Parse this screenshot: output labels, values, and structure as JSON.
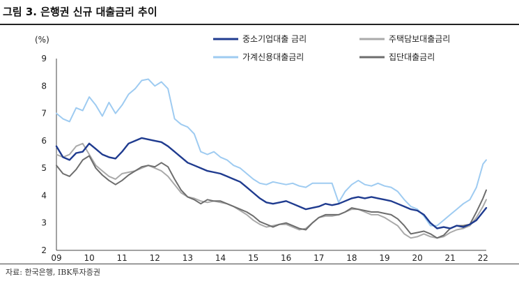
{
  "figure": {
    "title": "그림 3. 은행권 신규 대출금리 추이",
    "source": "자료: 한국은행, IBK투자증권"
  },
  "chart_data": {
    "type": "line",
    "ylabel": "(%)",
    "ylim": [
      2,
      9
    ],
    "xlim": [
      2009.0,
      2022.1
    ],
    "y_ticks": [
      2,
      3,
      4,
      5,
      6,
      7,
      8,
      9
    ],
    "x_tick_labels": [
      "09",
      "10",
      "11",
      "12",
      "13",
      "14",
      "15",
      "16",
      "17",
      "18",
      "19",
      "20",
      "21",
      "22"
    ],
    "grid": false,
    "legend_position": "top",
    "series": [
      {
        "name": "중소기업대출 금리",
        "color": "#1f3b8f",
        "data": [
          [
            2009.0,
            5.8
          ],
          [
            2009.2,
            5.4
          ],
          [
            2009.4,
            5.3
          ],
          [
            2009.6,
            5.55
          ],
          [
            2009.8,
            5.6
          ],
          [
            2010.0,
            5.9
          ],
          [
            2010.2,
            5.7
          ],
          [
            2010.4,
            5.5
          ],
          [
            2010.6,
            5.4
          ],
          [
            2010.8,
            5.35
          ],
          [
            2011.0,
            5.6
          ],
          [
            2011.2,
            5.9
          ],
          [
            2011.4,
            6.0
          ],
          [
            2011.6,
            6.1
          ],
          [
            2011.8,
            6.05
          ],
          [
            2012.0,
            6.0
          ],
          [
            2012.2,
            5.95
          ],
          [
            2012.4,
            5.8
          ],
          [
            2012.6,
            5.6
          ],
          [
            2012.8,
            5.4
          ],
          [
            2013.0,
            5.2
          ],
          [
            2013.2,
            5.1
          ],
          [
            2013.4,
            5.0
          ],
          [
            2013.6,
            4.9
          ],
          [
            2013.8,
            4.85
          ],
          [
            2014.0,
            4.8
          ],
          [
            2014.2,
            4.7
          ],
          [
            2014.4,
            4.6
          ],
          [
            2014.6,
            4.5
          ],
          [
            2014.8,
            4.3
          ],
          [
            2015.0,
            4.1
          ],
          [
            2015.2,
            3.9
          ],
          [
            2015.4,
            3.75
          ],
          [
            2015.6,
            3.7
          ],
          [
            2015.8,
            3.75
          ],
          [
            2016.0,
            3.8
          ],
          [
            2016.2,
            3.7
          ],
          [
            2016.4,
            3.6
          ],
          [
            2016.6,
            3.5
          ],
          [
            2016.8,
            3.55
          ],
          [
            2017.0,
            3.6
          ],
          [
            2017.2,
            3.7
          ],
          [
            2017.4,
            3.65
          ],
          [
            2017.6,
            3.7
          ],
          [
            2017.8,
            3.8
          ],
          [
            2018.0,
            3.9
          ],
          [
            2018.2,
            3.95
          ],
          [
            2018.4,
            3.9
          ],
          [
            2018.6,
            3.95
          ],
          [
            2018.8,
            3.9
          ],
          [
            2019.0,
            3.85
          ],
          [
            2019.2,
            3.8
          ],
          [
            2019.4,
            3.7
          ],
          [
            2019.6,
            3.6
          ],
          [
            2019.8,
            3.5
          ],
          [
            2020.0,
            3.45
          ],
          [
            2020.2,
            3.3
          ],
          [
            2020.4,
            3.0
          ],
          [
            2020.6,
            2.8
          ],
          [
            2020.8,
            2.85
          ],
          [
            2021.0,
            2.8
          ],
          [
            2021.2,
            2.9
          ],
          [
            2021.4,
            2.85
          ],
          [
            2021.6,
            2.95
          ],
          [
            2021.8,
            3.1
          ],
          [
            2022.0,
            3.4
          ],
          [
            2022.1,
            3.55
          ]
        ]
      },
      {
        "name": "주택담보대출금리",
        "color": "#a9a9a9",
        "data": [
          [
            2009.0,
            5.5
          ],
          [
            2009.2,
            5.4
          ],
          [
            2009.4,
            5.5
          ],
          [
            2009.6,
            5.8
          ],
          [
            2009.8,
            5.9
          ],
          [
            2010.0,
            5.5
          ],
          [
            2010.2,
            5.1
          ],
          [
            2010.4,
            4.9
          ],
          [
            2010.6,
            4.7
          ],
          [
            2010.8,
            4.6
          ],
          [
            2011.0,
            4.8
          ],
          [
            2011.2,
            4.85
          ],
          [
            2011.4,
            4.9
          ],
          [
            2011.6,
            5.0
          ],
          [
            2011.8,
            5.1
          ],
          [
            2012.0,
            5.0
          ],
          [
            2012.2,
            4.9
          ],
          [
            2012.4,
            4.7
          ],
          [
            2012.6,
            4.4
          ],
          [
            2012.8,
            4.1
          ],
          [
            2013.0,
            3.95
          ],
          [
            2013.2,
            3.9
          ],
          [
            2013.4,
            3.8
          ],
          [
            2013.6,
            3.75
          ],
          [
            2013.8,
            3.8
          ],
          [
            2014.0,
            3.75
          ],
          [
            2014.2,
            3.7
          ],
          [
            2014.4,
            3.6
          ],
          [
            2014.6,
            3.45
          ],
          [
            2014.8,
            3.3
          ],
          [
            2015.0,
            3.1
          ],
          [
            2015.2,
            2.95
          ],
          [
            2015.4,
            2.85
          ],
          [
            2015.6,
            2.9
          ],
          [
            2015.8,
            2.95
          ],
          [
            2016.0,
            2.95
          ],
          [
            2016.2,
            2.85
          ],
          [
            2016.4,
            2.75
          ],
          [
            2016.6,
            2.8
          ],
          [
            2016.8,
            3.0
          ],
          [
            2017.0,
            3.2
          ],
          [
            2017.2,
            3.25
          ],
          [
            2017.4,
            3.25
          ],
          [
            2017.6,
            3.3
          ],
          [
            2017.8,
            3.4
          ],
          [
            2018.0,
            3.5
          ],
          [
            2018.2,
            3.5
          ],
          [
            2018.4,
            3.4
          ],
          [
            2018.6,
            3.3
          ],
          [
            2018.8,
            3.3
          ],
          [
            2019.0,
            3.2
          ],
          [
            2019.2,
            3.05
          ],
          [
            2019.4,
            2.9
          ],
          [
            2019.6,
            2.6
          ],
          [
            2019.8,
            2.45
          ],
          [
            2020.0,
            2.5
          ],
          [
            2020.2,
            2.6
          ],
          [
            2020.4,
            2.5
          ],
          [
            2020.6,
            2.45
          ],
          [
            2020.8,
            2.5
          ],
          [
            2021.0,
            2.65
          ],
          [
            2021.2,
            2.75
          ],
          [
            2021.4,
            2.8
          ],
          [
            2021.6,
            2.9
          ],
          [
            2021.8,
            3.2
          ],
          [
            2022.0,
            3.6
          ],
          [
            2022.1,
            3.85
          ]
        ]
      },
      {
        "name": "가계신용대출금리",
        "color": "#9ecbf1",
        "data": [
          [
            2009.0,
            7.0
          ],
          [
            2009.2,
            6.8
          ],
          [
            2009.4,
            6.7
          ],
          [
            2009.6,
            7.2
          ],
          [
            2009.8,
            7.1
          ],
          [
            2010.0,
            7.6
          ],
          [
            2010.2,
            7.3
          ],
          [
            2010.4,
            6.9
          ],
          [
            2010.6,
            7.4
          ],
          [
            2010.8,
            7.0
          ],
          [
            2011.0,
            7.3
          ],
          [
            2011.2,
            7.7
          ],
          [
            2011.4,
            7.9
          ],
          [
            2011.6,
            8.2
          ],
          [
            2011.8,
            8.25
          ],
          [
            2012.0,
            8.0
          ],
          [
            2012.2,
            8.15
          ],
          [
            2012.4,
            7.9
          ],
          [
            2012.6,
            6.8
          ],
          [
            2012.8,
            6.6
          ],
          [
            2013.0,
            6.5
          ],
          [
            2013.2,
            6.25
          ],
          [
            2013.4,
            5.6
          ],
          [
            2013.6,
            5.5
          ],
          [
            2013.8,
            5.6
          ],
          [
            2014.0,
            5.4
          ],
          [
            2014.2,
            5.3
          ],
          [
            2014.4,
            5.1
          ],
          [
            2014.6,
            5.0
          ],
          [
            2014.8,
            4.8
          ],
          [
            2015.0,
            4.6
          ],
          [
            2015.2,
            4.45
          ],
          [
            2015.4,
            4.4
          ],
          [
            2015.6,
            4.5
          ],
          [
            2015.8,
            4.45
          ],
          [
            2016.0,
            4.4
          ],
          [
            2016.2,
            4.45
          ],
          [
            2016.4,
            4.35
          ],
          [
            2016.6,
            4.3
          ],
          [
            2016.8,
            4.45
          ],
          [
            2017.0,
            4.45
          ],
          [
            2017.2,
            4.45
          ],
          [
            2017.4,
            4.45
          ],
          [
            2017.6,
            3.75
          ],
          [
            2017.8,
            4.15
          ],
          [
            2018.0,
            4.4
          ],
          [
            2018.2,
            4.55
          ],
          [
            2018.4,
            4.4
          ],
          [
            2018.6,
            4.35
          ],
          [
            2018.8,
            4.45
          ],
          [
            2019.0,
            4.35
          ],
          [
            2019.2,
            4.3
          ],
          [
            2019.4,
            4.15
          ],
          [
            2019.6,
            3.85
          ],
          [
            2019.8,
            3.6
          ],
          [
            2020.0,
            3.5
          ],
          [
            2020.2,
            3.25
          ],
          [
            2020.4,
            2.9
          ],
          [
            2020.6,
            2.9
          ],
          [
            2020.8,
            3.1
          ],
          [
            2021.0,
            3.3
          ],
          [
            2021.2,
            3.5
          ],
          [
            2021.4,
            3.7
          ],
          [
            2021.6,
            3.85
          ],
          [
            2021.8,
            4.3
          ],
          [
            2022.0,
            5.15
          ],
          [
            2022.1,
            5.3
          ]
        ]
      },
      {
        "name": "집단대출금리",
        "color": "#6d6d6d",
        "data": [
          [
            2009.0,
            5.1
          ],
          [
            2009.2,
            4.8
          ],
          [
            2009.4,
            4.7
          ],
          [
            2009.6,
            4.95
          ],
          [
            2009.8,
            5.3
          ],
          [
            2010.0,
            5.45
          ],
          [
            2010.2,
            5.0
          ],
          [
            2010.4,
            4.75
          ],
          [
            2010.6,
            4.55
          ],
          [
            2010.8,
            4.4
          ],
          [
            2011.0,
            4.55
          ],
          [
            2011.2,
            4.75
          ],
          [
            2011.4,
            4.9
          ],
          [
            2011.6,
            5.05
          ],
          [
            2011.8,
            5.1
          ],
          [
            2012.0,
            5.05
          ],
          [
            2012.2,
            5.2
          ],
          [
            2012.4,
            5.05
          ],
          [
            2012.6,
            4.6
          ],
          [
            2012.8,
            4.2
          ],
          [
            2013.0,
            3.95
          ],
          [
            2013.2,
            3.85
          ],
          [
            2013.4,
            3.7
          ],
          [
            2013.6,
            3.85
          ],
          [
            2013.8,
            3.8
          ],
          [
            2014.0,
            3.8
          ],
          [
            2014.2,
            3.7
          ],
          [
            2014.4,
            3.6
          ],
          [
            2014.6,
            3.5
          ],
          [
            2014.8,
            3.4
          ],
          [
            2015.0,
            3.25
          ],
          [
            2015.2,
            3.05
          ],
          [
            2015.4,
            2.95
          ],
          [
            2015.6,
            2.85
          ],
          [
            2015.8,
            2.95
          ],
          [
            2016.0,
            3.0
          ],
          [
            2016.2,
            2.9
          ],
          [
            2016.4,
            2.8
          ],
          [
            2016.6,
            2.75
          ],
          [
            2016.8,
            3.0
          ],
          [
            2017.0,
            3.2
          ],
          [
            2017.2,
            3.3
          ],
          [
            2017.4,
            3.3
          ],
          [
            2017.6,
            3.3
          ],
          [
            2017.8,
            3.4
          ],
          [
            2018.0,
            3.55
          ],
          [
            2018.2,
            3.5
          ],
          [
            2018.4,
            3.45
          ],
          [
            2018.6,
            3.4
          ],
          [
            2018.8,
            3.4
          ],
          [
            2019.0,
            3.35
          ],
          [
            2019.2,
            3.3
          ],
          [
            2019.4,
            3.15
          ],
          [
            2019.6,
            2.9
          ],
          [
            2019.8,
            2.6
          ],
          [
            2020.0,
            2.65
          ],
          [
            2020.2,
            2.7
          ],
          [
            2020.4,
            2.6
          ],
          [
            2020.6,
            2.45
          ],
          [
            2020.8,
            2.55
          ],
          [
            2021.0,
            2.8
          ],
          [
            2021.2,
            2.9
          ],
          [
            2021.4,
            2.9
          ],
          [
            2021.6,
            2.95
          ],
          [
            2021.8,
            3.4
          ],
          [
            2022.0,
            3.9
          ],
          [
            2022.1,
            4.2
          ]
        ]
      }
    ]
  }
}
